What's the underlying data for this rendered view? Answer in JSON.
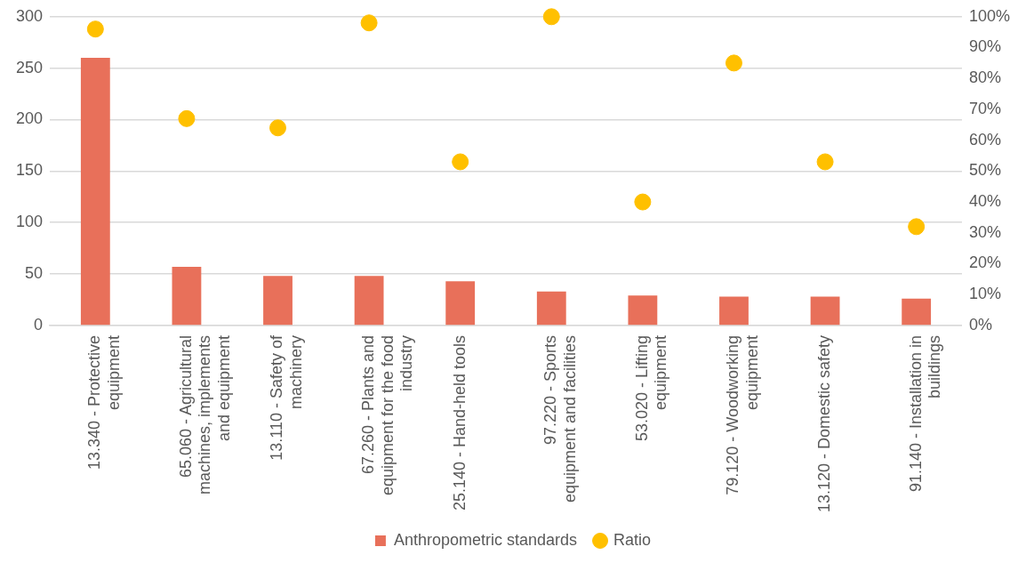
{
  "chart_data": {
    "type": "bar",
    "categories": [
      "13.340 - Protective\nequipment",
      "65.060 - Agricultural\nmachines, implements\nand equipment",
      "13.110 - Safety of\nmachinery",
      "67.260 - Plants and\nequipment for the food\nindustry",
      "25.140 - Hand-held tools",
      "97.220 - Sports\nequipment and facilities",
      "53.020 - Lifting\nequipment",
      "79.120 - Woodworking\nequipment",
      "13.120 - Domestic safety",
      "91.140 - Installation in\nbuildings"
    ],
    "series": [
      {
        "name": "Anthropometric standards",
        "color": "#e8705a",
        "values": [
          260,
          57,
          48,
          48,
          43,
          33,
          29,
          28,
          28,
          26
        ]
      },
      {
        "name": "Ratio",
        "type": "scatter",
        "axis": "y2",
        "color": "#ffc000",
        "values": [
          96,
          67,
          64,
          98,
          53,
          100,
          40,
          85,
          53,
          32
        ]
      }
    ],
    "ylim": [
      0,
      300
    ],
    "yticks": [
      0,
      50,
      100,
      150,
      200,
      250,
      300
    ],
    "y2lim": [
      0,
      100
    ],
    "y2ticks": [
      {
        "value": 0,
        "label": "0%"
      },
      {
        "value": 10,
        "label": "10%"
      },
      {
        "value": 20,
        "label": "20%"
      },
      {
        "value": 30,
        "label": "30%"
      },
      {
        "value": 40,
        "label": "40%"
      },
      {
        "value": 50,
        "label": "50%"
      },
      {
        "value": 60,
        "label": "60%"
      },
      {
        "value": 70,
        "label": "70%"
      },
      {
        "value": 80,
        "label": "80%"
      },
      {
        "value": 90,
        "label": "90%"
      },
      {
        "value": 100,
        "label": "100%"
      }
    ],
    "grid": "y",
    "legend": "bottom",
    "marker": "circle"
  }
}
